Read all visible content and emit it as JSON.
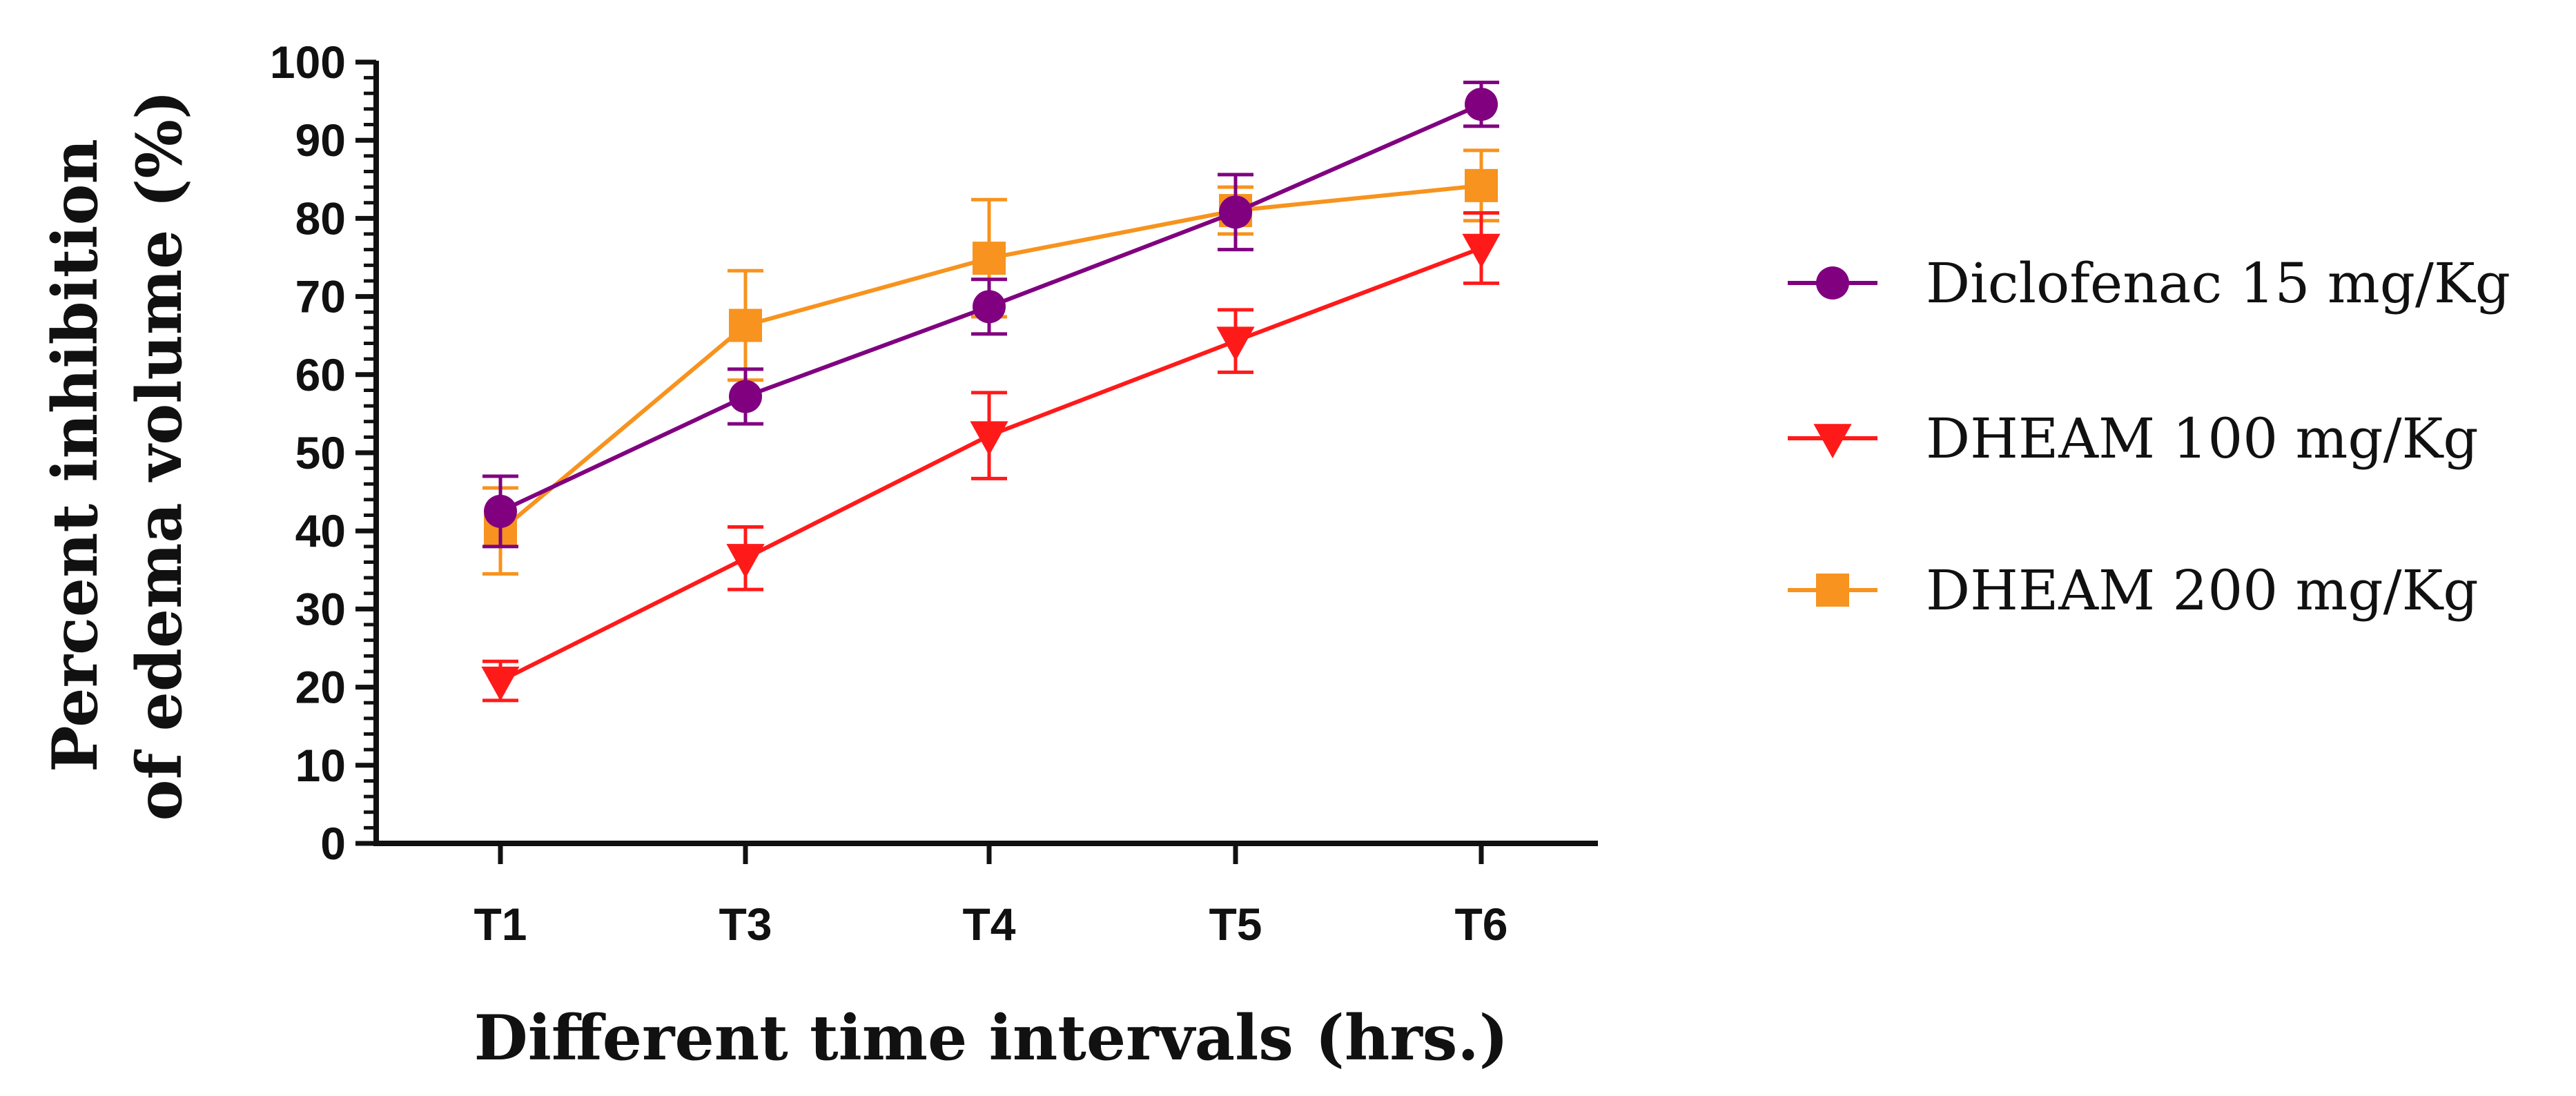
{
  "chart_data": {
    "type": "line",
    "categories": [
      "T1",
      "T3",
      "T4",
      "T5",
      "T6"
    ],
    "xlabel": "Different time intervals (hrs.)",
    "ylabel_lines": [
      "Percent inhibition",
      "of edema volume (%)"
    ],
    "ylim": [
      0,
      100
    ],
    "yticks": [
      0,
      10,
      20,
      30,
      40,
      50,
      60,
      70,
      80,
      90,
      100
    ],
    "legend_position": "right",
    "series": [
      {
        "name": "Diclofenac 15 mg/Kg",
        "color": "#800080",
        "marker": "circle",
        "values": [
          42.5,
          57.2,
          68.7,
          80.8,
          94.6
        ],
        "errors": [
          4.5,
          3.5,
          3.5,
          4.8,
          2.8
        ]
      },
      {
        "name": "DHEAM 100 mg/Kg",
        "color": "#ff1a1a",
        "marker": "triangle-down",
        "values": [
          20.8,
          36.5,
          52.2,
          64.3,
          76.2
        ],
        "errors": [
          2.5,
          4.0,
          5.5,
          4.0,
          4.5
        ]
      },
      {
        "name": "DHEAM 200 mg/Kg",
        "color": "#f7931e",
        "marker": "square",
        "values": [
          40.0,
          66.3,
          74.9,
          81.0,
          84.2
        ],
        "errors": [
          5.5,
          7.0,
          7.5,
          3.0,
          4.5
        ]
      }
    ]
  }
}
